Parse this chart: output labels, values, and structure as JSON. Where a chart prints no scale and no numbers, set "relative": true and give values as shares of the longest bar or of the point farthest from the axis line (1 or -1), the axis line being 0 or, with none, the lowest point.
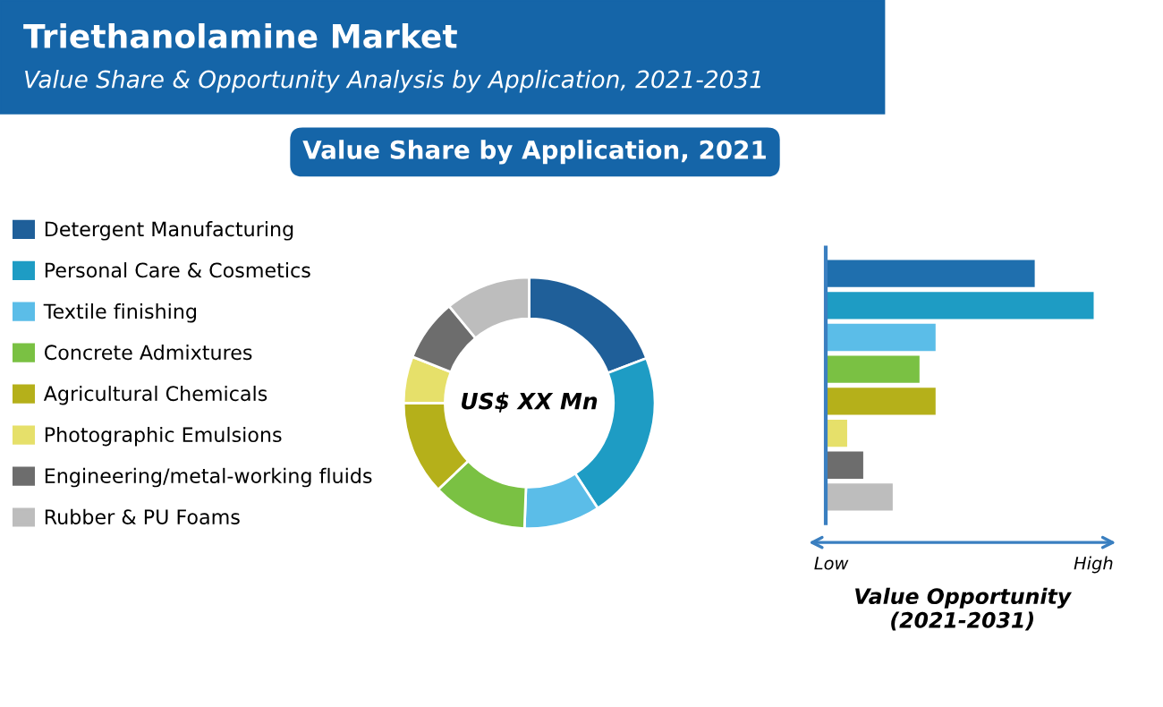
{
  "chart_data": [
    {
      "type": "donut",
      "title": "Triethanolamine Market",
      "subtitle": "Value Share & Opportunity Analysis by Application, 2021-2031",
      "xlabel": "Value Share by Application, 2021",
      "categories": [
        "Detergent Manufacturing",
        "Personal Care & Cosmetics",
        "Textile finishing",
        "Concrete Admixtures",
        "Agricultural Chemicals",
        "Photographic Emulsions",
        "Engineering/metal-working fluids",
        "Rubber & PU Foams"
      ],
      "values": [
        19.2,
        21.6,
        9.8,
        12.3,
        12.1,
        6.0,
        8.0,
        11.0
      ],
      "colors": [
        "#1f5f99",
        "#1e9cc4",
        "#5bbde8",
        "#7ac143",
        "#b5b01a",
        "#e6e06a",
        "#6d6d6d",
        "#bdbdbd"
      ],
      "annotations": [
        "US$ XX Mn"
      ],
      "legend": "left"
    },
    {
      "type": "bar",
      "orientation": "horizontal",
      "relative": true,
      "tick_labels": false,
      "categories": [
        null,
        null,
        null,
        null,
        null,
        null,
        null,
        null
      ],
      "values": [
        0.78,
        1,
        0.41,
        0.35,
        0.41,
        0.08,
        0.14,
        0.25
      ],
      "colors": [
        "#1f6fae",
        "#1e9cc4",
        "#5bbde8",
        "#7ac143",
        "#b5b01a",
        "#e6e06a",
        "#6d6d6d",
        "#bdbdbd"
      ],
      "xlabel": "Value Opportunity\n(2021-2031)",
      "annotations": [
        "Low",
        "High"
      ]
    }
  ]
}
